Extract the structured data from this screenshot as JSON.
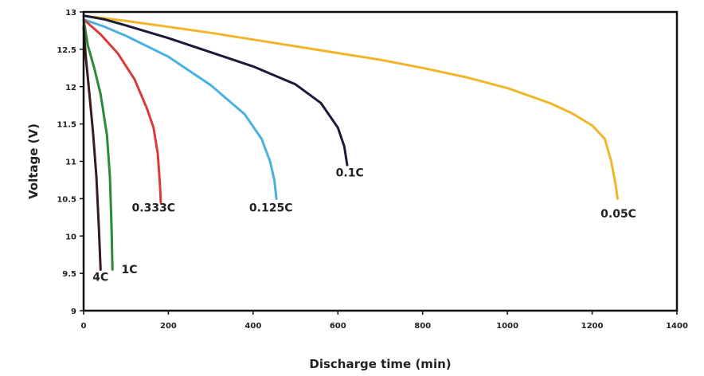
{
  "chart_data": {
    "type": "line",
    "title": "",
    "xlabel": "Discharge time (min)",
    "ylabel": "Voltage (V)",
    "xlim": [
      0,
      1400
    ],
    "ylim": [
      9,
      13
    ],
    "xticks": [
      0,
      200,
      400,
      600,
      800,
      1000,
      1200,
      1400
    ],
    "yticks": [
      9,
      9.5,
      10,
      10.5,
      11,
      11.5,
      12,
      12.5,
      13
    ],
    "xtick_labels": [
      "0",
      "200",
      "400",
      "600",
      "800",
      "1000",
      "1200",
      "1400"
    ],
    "ytick_labels": [
      "9",
      "9.5",
      "10",
      "10.5",
      "11",
      "11.5",
      "12",
      "12.5",
      "13"
    ],
    "grid": false,
    "legend": "none",
    "series": [
      {
        "name": "0.05C",
        "color": "#f0b62a",
        "x": [
          0,
          100,
          200,
          300,
          400,
          500,
          600,
          700,
          800,
          900,
          1000,
          1100,
          1150,
          1200,
          1230,
          1245,
          1255,
          1260
        ],
        "y": [
          12.95,
          12.88,
          12.8,
          12.72,
          12.63,
          12.54,
          12.45,
          12.36,
          12.25,
          12.13,
          11.98,
          11.78,
          11.65,
          11.48,
          11.3,
          11.0,
          10.7,
          10.5
        ]
      },
      {
        "name": "0.1C",
        "color": "#1a1a3a",
        "x": [
          0,
          50,
          100,
          200,
          300,
          400,
          500,
          560,
          600,
          615,
          622
        ],
        "y": [
          12.95,
          12.9,
          12.82,
          12.65,
          12.46,
          12.27,
          12.03,
          11.78,
          11.45,
          11.2,
          10.95
        ]
      },
      {
        "name": "0.125C",
        "color": "#4ab0e0",
        "x": [
          0,
          50,
          100,
          200,
          300,
          380,
          420,
          440,
          450,
          455
        ],
        "y": [
          12.9,
          12.8,
          12.68,
          12.4,
          12.02,
          11.63,
          11.3,
          11.0,
          10.75,
          10.5
        ]
      },
      {
        "name": "0.333C",
        "color": "#d93a3a",
        "x": [
          0,
          40,
          80,
          120,
          150,
          165,
          175,
          180,
          182
        ],
        "y": [
          12.9,
          12.7,
          12.45,
          12.1,
          11.7,
          11.45,
          11.1,
          10.7,
          10.45
        ]
      },
      {
        "name": "1C",
        "color": "#2a8a3a",
        "x": [
          0,
          10,
          25,
          40,
          55,
          62,
          66,
          68
        ],
        "y": [
          12.9,
          12.55,
          12.25,
          11.9,
          11.35,
          10.8,
          10.1,
          9.55
        ]
      },
      {
        "name": "4C",
        "color": "#3a1a1a",
        "x": [
          0,
          5,
          12,
          22,
          30,
          36,
          40
        ],
        "y": [
          12.8,
          12.4,
          12.0,
          11.4,
          10.8,
          10.1,
          9.55
        ]
      }
    ],
    "annotations": [
      {
        "text": "0.05C",
        "x": 1262,
        "y": 10.25
      },
      {
        "text": "0.1C",
        "x": 628,
        "y": 10.8
      },
      {
        "text": "0.125C",
        "x": 442,
        "y": 10.33
      },
      {
        "text": "0.333C",
        "x": 165,
        "y": 10.33
      },
      {
        "text": "1C",
        "x": 108,
        "y": 9.5
      },
      {
        "text": "4C",
        "x": 40,
        "y": 9.4
      }
    ]
  }
}
